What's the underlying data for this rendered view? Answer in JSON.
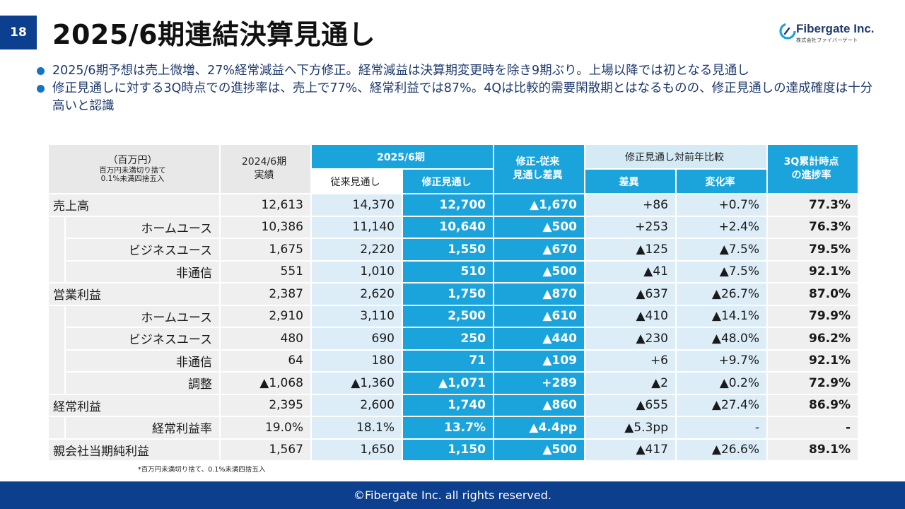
{
  "page": {
    "number": "18",
    "title": "2025/6期連結決算見通し"
  },
  "logo": {
    "name": "Fibergate Inc.",
    "sub": "株式会社ファイバーゲート"
  },
  "bullets": [
    "2025/6期予想は売上微増、27%経常減益へ下方修正。経常減益は決算期変更時を除き9期ぶり。上場以降では初となる見通し",
    "修正見通しに対する3Q時点での進捗率は、売上で77%、経常利益では87%。4Qは比較的需要閑散期とはなるものの、修正見通しの達成確度は十分高いと認識"
  ],
  "table": {
    "header": {
      "unit_main": "（百万円）",
      "unit_sub1": "百万円未満切り捨て",
      "unit_sub2": "0.1%未満四捨五入",
      "actual": "2024/6期",
      "actual2": "実績",
      "fy": "2025/6期",
      "prev": "従来見通し",
      "revised": "修正見通し",
      "diff1": "修正-従来",
      "diff2": "見通し差異",
      "yoy": "修正見通し対前年比較",
      "yoy_diff": "差異",
      "yoy_rate": "変化率",
      "progress1": "3Q累計時点",
      "progress2": "の進捗率"
    },
    "rows": [
      {
        "label": "売上高",
        "sub": false,
        "actual": "12,613",
        "prev": "14,370",
        "revised": "12,700",
        "diff": "▲1,670",
        "yoy_diff": "+86",
        "yoy_rate": "+0.7%",
        "progress": "77.3%"
      },
      {
        "label": "ホームユース",
        "sub": true,
        "actual": "10,386",
        "prev": "11,140",
        "revised": "10,640",
        "diff": "▲500",
        "yoy_diff": "+253",
        "yoy_rate": "+2.4%",
        "progress": "76.3%"
      },
      {
        "label": "ビジネスユース",
        "sub": true,
        "actual": "1,675",
        "prev": "2,220",
        "revised": "1,550",
        "diff": "▲670",
        "yoy_diff": "▲125",
        "yoy_rate": "▲7.5%",
        "progress": "79.5%"
      },
      {
        "label": "非通信",
        "sub": true,
        "actual": "551",
        "prev": "1,010",
        "revised": "510",
        "diff": "▲500",
        "yoy_diff": "▲41",
        "yoy_rate": "▲7.5%",
        "progress": "92.1%"
      },
      {
        "label": "営業利益",
        "sub": false,
        "actual": "2,387",
        "prev": "2,620",
        "revised": "1,750",
        "diff": "▲870",
        "yoy_diff": "▲637",
        "yoy_rate": "▲26.7%",
        "progress": "87.0%"
      },
      {
        "label": "ホームユース",
        "sub": true,
        "actual": "2,910",
        "prev": "3,110",
        "revised": "2,500",
        "diff": "▲610",
        "yoy_diff": "▲410",
        "yoy_rate": "▲14.1%",
        "progress": "79.9%"
      },
      {
        "label": "ビジネスユース",
        "sub": true,
        "actual": "480",
        "prev": "690",
        "revised": "250",
        "diff": "▲440",
        "yoy_diff": "▲230",
        "yoy_rate": "▲48.0%",
        "progress": "96.2%"
      },
      {
        "label": "非通信",
        "sub": true,
        "actual": "64",
        "prev": "180",
        "revised": "71",
        "diff": "▲109",
        "yoy_diff": "+6",
        "yoy_rate": "+9.7%",
        "progress": "92.1%"
      },
      {
        "label": "調整",
        "sub": true,
        "actual": "▲1,068",
        "prev": "▲1,360",
        "revised": "▲1,071",
        "diff": "+289",
        "yoy_diff": "▲2",
        "yoy_rate": "▲0.2%",
        "progress": "72.9%"
      },
      {
        "label": "経常利益",
        "sub": false,
        "actual": "2,395",
        "prev": "2,600",
        "revised": "1,740",
        "diff": "▲860",
        "yoy_diff": "▲655",
        "yoy_rate": "▲27.4%",
        "progress": "86.9%"
      },
      {
        "label": "経常利益率",
        "sub": true,
        "actual": "19.0%",
        "prev": "18.1%",
        "revised": "13.7%",
        "diff": "▲4.4pp",
        "yoy_diff": "▲5.3pp",
        "yoy_rate": "-",
        "progress": "-"
      },
      {
        "label": "親会社当期純利益",
        "sub": false,
        "actual": "1,567",
        "prev": "1,650",
        "revised": "1,150",
        "diff": "▲500",
        "yoy_diff": "▲417",
        "yoy_rate": "▲26.6%",
        "progress": "89.1%"
      }
    ]
  },
  "footnote": "*百万円未満切り捨て、0.1%未満四捨五入",
  "footer": "©Fibergate Inc. all rights reserved.",
  "colors": {
    "navy": "#0d3f8f",
    "blue": "#1ba3dc",
    "light_blue": "#dcedf8",
    "gray": "#efefef"
  }
}
